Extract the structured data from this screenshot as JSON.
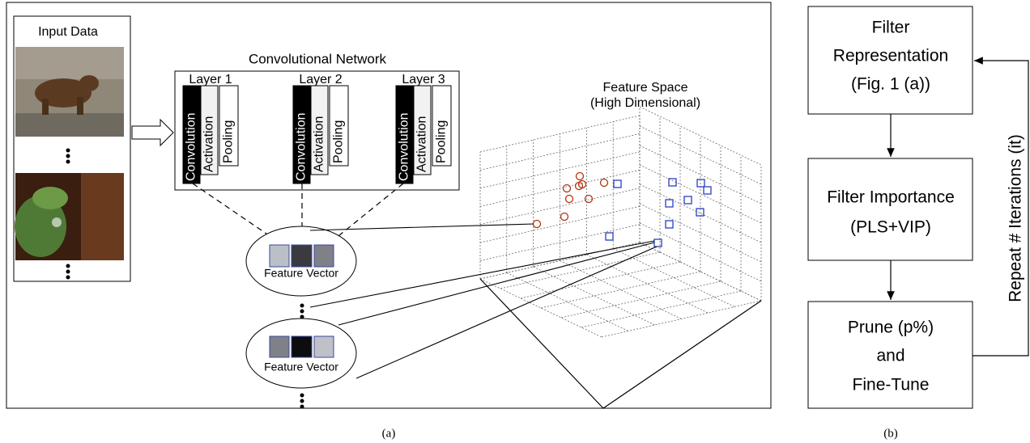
{
  "panel_a": {
    "input_title": "Input Data",
    "network_title": "Convolutional Network",
    "layers": [
      {
        "label": "Layer 1",
        "blocks": [
          "Convolution",
          "Activation",
          "Pooling"
        ]
      },
      {
        "label": "Layer 2",
        "blocks": [
          "Convolution",
          "Activation",
          "Pooling"
        ]
      },
      {
        "label": "Layer 3",
        "blocks": [
          "Convolution",
          "Activation",
          "Pooling"
        ]
      }
    ],
    "feature_space_title": [
      "Feature Space",
      "(High Dimensional)"
    ],
    "feature_vectors": [
      "Feature Vector",
      "Feature Vector"
    ],
    "caption": "(a)"
  },
  "panel_b": {
    "steps": [
      {
        "lines": [
          "Filter",
          "Representation",
          "(Fig. 1 (a))"
        ]
      },
      {
        "lines": [
          "Filter Importance",
          "(PLS+VIP)"
        ]
      },
      {
        "lines": [
          "Prune (p%)",
          "and",
          "Fine-Tune"
        ]
      }
    ],
    "loop_label": "Repeat # Iterations (it)",
    "caption": "(b)"
  }
}
